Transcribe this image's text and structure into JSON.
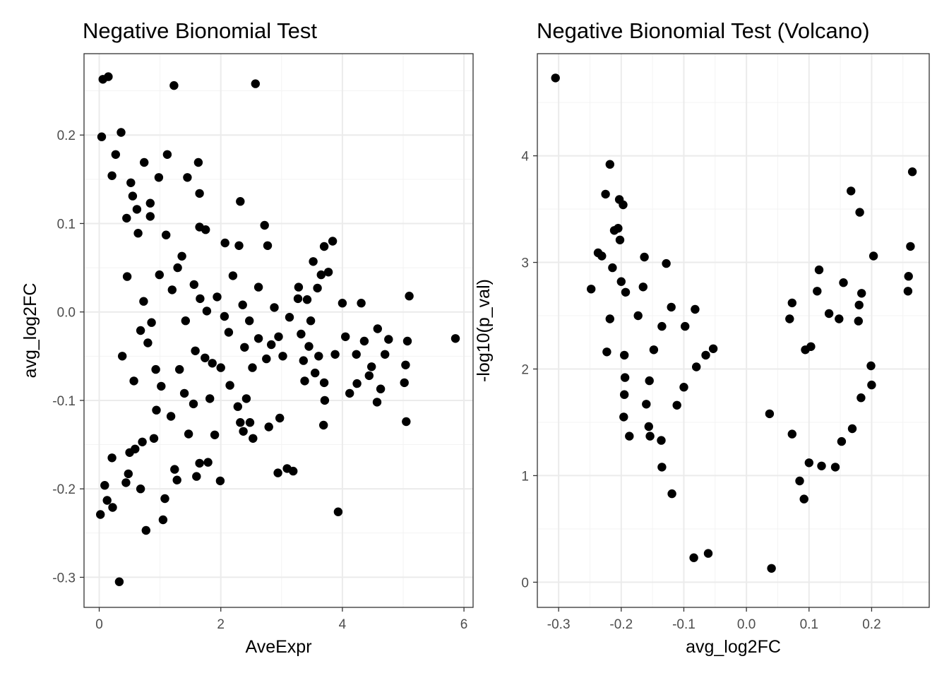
{
  "chart_data": [
    {
      "type": "scatter",
      "title": "Negative Bionomial Test",
      "xlabel": "AveExpr",
      "ylabel": "avg_log2FC",
      "xlim": [
        -0.25,
        6.15
      ],
      "ylim": [
        -0.334,
        0.292
      ],
      "xticks": [
        0,
        2,
        4,
        6
      ],
      "xtick_labels": [
        "0",
        "2",
        "4",
        "6"
      ],
      "yticks": [
        -0.3,
        -0.2,
        -0.1,
        0.0,
        0.1,
        0.2
      ],
      "ytick_labels": [
        "-0.3",
        "-0.2",
        "-0.1",
        "0.0",
        "0.1",
        "0.2"
      ],
      "grid": true,
      "point_color": "#000000",
      "points": [
        [
          0.06,
          0.263
        ],
        [
          0.15,
          0.266
        ],
        [
          0.33,
          -0.305
        ],
        [
          1.23,
          0.256
        ],
        [
          2.57,
          0.258
        ],
        [
          0.04,
          0.198
        ],
        [
          0.36,
          0.203
        ],
        [
          1.12,
          0.178
        ],
        [
          1.63,
          0.169
        ],
        [
          1.45,
          0.152
        ],
        [
          2.32,
          0.125
        ],
        [
          2.72,
          0.098
        ],
        [
          2.77,
          0.075
        ],
        [
          2.3,
          0.075
        ],
        [
          1.65,
          0.134
        ],
        [
          0.98,
          0.152
        ],
        [
          0.84,
          0.108
        ],
        [
          0.74,
          0.169
        ],
        [
          1.65,
          0.096
        ],
        [
          1.75,
          0.093
        ],
        [
          2.07,
          0.078
        ],
        [
          2.2,
          0.041
        ],
        [
          3.7,
          0.074
        ],
        [
          3.84,
          0.08
        ],
        [
          3.52,
          0.057
        ],
        [
          3.77,
          0.045
        ],
        [
          3.65,
          0.042
        ],
        [
          4.0,
          0.01
        ],
        [
          3.59,
          0.027
        ],
        [
          3.27,
          0.015
        ],
        [
          3.28,
          0.028
        ],
        [
          3.42,
          0.014
        ],
        [
          3.32,
          -0.025
        ],
        [
          3.36,
          -0.055
        ],
        [
          3.38,
          -0.078
        ],
        [
          3.45,
          -0.039
        ],
        [
          3.61,
          -0.05
        ],
        [
          3.7,
          -0.08
        ],
        [
          3.71,
          -0.1
        ],
        [
          3.69,
          -0.128
        ],
        [
          3.93,
          -0.226
        ],
        [
          4.12,
          -0.092
        ],
        [
          4.23,
          -0.048
        ],
        [
          4.24,
          -0.081
        ],
        [
          4.36,
          -0.033
        ],
        [
          4.48,
          -0.062
        ],
        [
          4.57,
          -0.102
        ],
        [
          4.63,
          -0.087
        ],
        [
          4.7,
          -0.048
        ],
        [
          4.58,
          -0.019
        ],
        [
          4.76,
          -0.031
        ],
        [
          5.02,
          -0.08
        ],
        [
          5.04,
          -0.06
        ],
        [
          5.1,
          0.018
        ],
        [
          5.07,
          -0.033
        ],
        [
          5.05,
          -0.124
        ],
        [
          5.86,
          -0.03
        ],
        [
          2.94,
          -0.182
        ],
        [
          3.09,
          -0.177
        ],
        [
          3.19,
          -0.18
        ],
        [
          2.97,
          -0.12
        ],
        [
          2.79,
          -0.13
        ],
        [
          2.53,
          -0.143
        ],
        [
          2.48,
          -0.125
        ],
        [
          2.37,
          -0.135
        ],
        [
          2.28,
          -0.107
        ],
        [
          2.42,
          -0.098
        ],
        [
          2.32,
          -0.125
        ],
        [
          1.99,
          -0.191
        ],
        [
          1.79,
          -0.17
        ],
        [
          1.65,
          -0.171
        ],
        [
          1.6,
          -0.186
        ],
        [
          1.28,
          -0.19
        ],
        [
          1.24,
          -0.178
        ],
        [
          1.05,
          -0.235
        ],
        [
          1.08,
          -0.211
        ],
        [
          0.77,
          -0.247
        ],
        [
          0.68,
          -0.2
        ],
        [
          1.9,
          -0.139
        ],
        [
          1.82,
          -0.098
        ],
        [
          2.0,
          -0.063
        ],
        [
          2.15,
          -0.083
        ],
        [
          2.39,
          -0.04
        ],
        [
          2.52,
          -0.063
        ],
        [
          2.75,
          -0.053
        ],
        [
          2.83,
          -0.037
        ],
        [
          2.95,
          -0.028
        ],
        [
          3.13,
          -0.006
        ],
        [
          3.02,
          -0.05
        ],
        [
          2.62,
          -0.03
        ],
        [
          2.47,
          -0.01
        ],
        [
          2.88,
          0.005
        ],
        [
          2.62,
          0.028
        ],
        [
          2.36,
          0.008
        ],
        [
          1.94,
          0.017
        ],
        [
          1.77,
          0.001
        ],
        [
          1.56,
          0.031
        ],
        [
          1.36,
          0.063
        ],
        [
          1.1,
          0.087
        ],
        [
          1.29,
          0.05
        ],
        [
          0.93,
          -0.065
        ],
        [
          1.18,
          -0.118
        ],
        [
          1.47,
          -0.138
        ],
        [
          1.55,
          -0.104
        ],
        [
          0.55,
          0.131
        ],
        [
          0.52,
          0.146
        ],
        [
          0.62,
          0.116
        ],
        [
          0.84,
          0.123
        ],
        [
          0.44,
          -0.193
        ],
        [
          0.48,
          -0.183
        ],
        [
          0.59,
          -0.155
        ],
        [
          0.71,
          -0.147
        ],
        [
          0.9,
          -0.143
        ],
        [
          0.94,
          -0.111
        ],
        [
          1.4,
          -0.092
        ],
        [
          1.74,
          -0.052
        ],
        [
          0.27,
          0.178
        ],
        [
          0.21,
          0.154
        ],
        [
          0.45,
          0.106
        ],
        [
          0.22,
          -0.221
        ],
        [
          0.13,
          -0.213
        ],
        [
          0.09,
          -0.196
        ],
        [
          0.02,
          -0.229
        ],
        [
          0.21,
          -0.165
        ],
        [
          0.5,
          -0.159
        ],
        [
          3.55,
          -0.069
        ],
        [
          3.48,
          -0.01
        ],
        [
          3.88,
          -0.048
        ],
        [
          4.44,
          -0.072
        ],
        [
          4.31,
          0.01
        ],
        [
          4.05,
          -0.028
        ],
        [
          2.06,
          -0.005
        ],
        [
          1.86,
          -0.058
        ],
        [
          2.13,
          -0.023
        ],
        [
          0.64,
          0.089
        ],
        [
          0.8,
          -0.035
        ],
        [
          0.73,
          0.012
        ],
        [
          1.02,
          -0.084
        ],
        [
          1.32,
          -0.065
        ],
        [
          1.58,
          -0.044
        ],
        [
          1.2,
          0.025
        ],
        [
          0.99,
          0.042
        ],
        [
          0.86,
          -0.012
        ],
        [
          1.42,
          -0.01
        ],
        [
          1.66,
          0.015
        ],
        [
          0.57,
          -0.078
        ],
        [
          0.68,
          -0.021
        ],
        [
          0.46,
          0.04
        ],
        [
          0.38,
          -0.05
        ]
      ]
    },
    {
      "type": "scatter",
      "title": "Negative Bionomial Test (Volcano)",
      "xlabel": "avg_log2FC",
      "ylabel": "-log10(p_val)",
      "xlim": [
        -0.334,
        0.292
      ],
      "ylim": [
        -0.236,
        4.958
      ],
      "xticks": [
        -0.3,
        -0.2,
        -0.1,
        0.0,
        0.1,
        0.2
      ],
      "xtick_labels": [
        "-0.3",
        "-0.2",
        "-0.1",
        "0.0",
        "0.1",
        "0.2"
      ],
      "yticks": [
        0,
        1,
        2,
        3,
        4
      ],
      "ytick_labels": [
        "0",
        "1",
        "2",
        "3",
        "4"
      ],
      "grid": true,
      "point_color": "#000000",
      "points": [
        [
          -0.305,
          4.73
        ],
        [
          -0.218,
          3.92
        ],
        [
          -0.225,
          3.64
        ],
        [
          -0.203,
          3.59
        ],
        [
          -0.197,
          3.54
        ],
        [
          -0.211,
          3.3
        ],
        [
          -0.205,
          3.32
        ],
        [
          -0.202,
          3.21
        ],
        [
          -0.237,
          3.09
        ],
        [
          -0.231,
          3.06
        ],
        [
          -0.248,
          2.75
        ],
        [
          -0.214,
          2.95
        ],
        [
          -0.2,
          2.82
        ],
        [
          -0.193,
          2.72
        ],
        [
          -0.163,
          3.05
        ],
        [
          -0.128,
          2.99
        ],
        [
          -0.218,
          2.47
        ],
        [
          -0.223,
          2.16
        ],
        [
          -0.195,
          2.13
        ],
        [
          -0.194,
          1.92
        ],
        [
          -0.195,
          1.76
        ],
        [
          -0.196,
          1.55
        ],
        [
          -0.187,
          1.37
        ],
        [
          -0.082,
          2.56
        ],
        [
          -0.098,
          2.4
        ],
        [
          -0.12,
          2.58
        ],
        [
          -0.135,
          2.4
        ],
        [
          -0.119,
          0.83
        ],
        [
          -0.165,
          2.77
        ],
        [
          -0.173,
          2.5
        ],
        [
          -0.148,
          2.18
        ],
        [
          -0.155,
          1.89
        ],
        [
          -0.16,
          1.67
        ],
        [
          -0.156,
          1.46
        ],
        [
          -0.154,
          1.37
        ],
        [
          0.167,
          3.67
        ],
        [
          0.181,
          3.47
        ],
        [
          0.203,
          3.06
        ],
        [
          0.265,
          3.85
        ],
        [
          0.262,
          3.15
        ],
        [
          0.259,
          2.87
        ],
        [
          0.258,
          2.73
        ],
        [
          0.116,
          2.93
        ],
        [
          0.155,
          2.81
        ],
        [
          0.18,
          2.6
        ],
        [
          0.184,
          2.71
        ],
        [
          0.113,
          2.73
        ],
        [
          0.132,
          2.52
        ],
        [
          0.073,
          2.62
        ],
        [
          0.069,
          2.47
        ],
        [
          0.148,
          2.47
        ],
        [
          0.179,
          2.45
        ],
        [
          0.199,
          2.03
        ],
        [
          0.2,
          1.85
        ],
        [
          0.183,
          1.73
        ],
        [
          0.169,
          1.44
        ],
        [
          0.152,
          1.32
        ],
        [
          0.142,
          1.08
        ],
        [
          0.12,
          1.09
        ],
        [
          0.1,
          1.12
        ],
        [
          0.085,
          0.95
        ],
        [
          0.092,
          0.78
        ],
        [
          0.04,
          0.13
        ],
        [
          0.103,
          2.21
        ],
        [
          0.094,
          2.18
        ],
        [
          0.037,
          1.58
        ],
        [
          0.073,
          1.39
        ],
        [
          -0.053,
          2.19
        ],
        [
          -0.065,
          2.13
        ],
        [
          -0.08,
          2.02
        ],
        [
          -0.1,
          1.83
        ],
        [
          -0.111,
          1.66
        ],
        [
          -0.136,
          1.33
        ],
        [
          -0.135,
          1.08
        ],
        [
          -0.061,
          0.27
        ],
        [
          -0.084,
          0.23
        ]
      ]
    }
  ]
}
